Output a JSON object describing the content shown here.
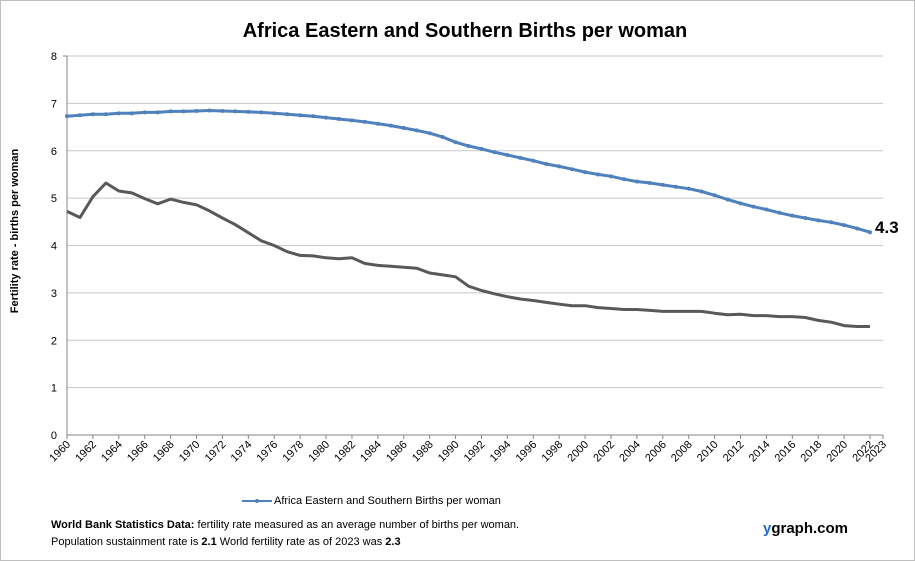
{
  "chart_data": {
    "type": "line",
    "title": "Africa Eastern and Southern Births per woman",
    "ylabel": "Fertility rate  - births per woman",
    "xlabel": "",
    "ylim": [
      0,
      8
    ],
    "yticks": [
      "0",
      "1",
      "2",
      "3",
      "4",
      "5",
      "6",
      "7",
      "8"
    ],
    "xlim": [
      1960,
      2023
    ],
    "xticks": [
      "1960",
      "1962",
      "1964",
      "1966",
      "1968",
      "1970",
      "1972",
      "1974",
      "1976",
      "1978",
      "1980",
      "1982",
      "1984",
      "1986",
      "1988",
      "1990",
      "1992",
      "1994",
      "1996",
      "1998",
      "2000",
      "2002",
      "2004",
      "2006",
      "2008",
      "2010",
      "2012",
      "2014",
      "2016",
      "2018",
      "2020",
      "2022",
      "2023"
    ],
    "grid": true,
    "legend_position": "bottom",
    "end_label": "4.3",
    "x": [
      1960,
      1961,
      1962,
      1963,
      1964,
      1965,
      1966,
      1967,
      1968,
      1969,
      1970,
      1971,
      1972,
      1973,
      1974,
      1975,
      1976,
      1977,
      1978,
      1979,
      1980,
      1981,
      1982,
      1983,
      1984,
      1985,
      1986,
      1987,
      1988,
      1989,
      1990,
      1991,
      1992,
      1993,
      1994,
      1995,
      1996,
      1997,
      1998,
      1999,
      2000,
      2001,
      2002,
      2003,
      2004,
      2005,
      2006,
      2007,
      2008,
      2009,
      2010,
      2011,
      2012,
      2013,
      2014,
      2015,
      2016,
      2017,
      2018,
      2019,
      2020,
      2021,
      2022
    ],
    "series": [
      {
        "name": "Africa Eastern and Southern Births per woman",
        "color": "#4f81bd",
        "markers": true,
        "values": [
          6.73,
          6.75,
          6.77,
          6.77,
          6.79,
          6.79,
          6.81,
          6.81,
          6.83,
          6.83,
          6.84,
          6.85,
          6.84,
          6.83,
          6.82,
          6.81,
          6.79,
          6.77,
          6.75,
          6.73,
          6.7,
          6.67,
          6.64,
          6.61,
          6.57,
          6.53,
          6.48,
          6.43,
          6.37,
          6.29,
          6.18,
          6.1,
          6.04,
          5.97,
          5.91,
          5.85,
          5.79,
          5.72,
          5.67,
          5.61,
          5.55,
          5.5,
          5.46,
          5.4,
          5.35,
          5.32,
          5.28,
          5.24,
          5.2,
          5.14,
          5.06,
          4.97,
          4.89,
          4.82,
          4.76,
          4.69,
          4.63,
          4.58,
          4.53,
          4.49,
          4.43,
          4.36,
          4.28
        ]
      },
      {
        "color": "#595959",
        "markers": false,
        "values": [
          4.72,
          4.59,
          5.03,
          5.32,
          5.15,
          5.11,
          4.99,
          4.88,
          4.98,
          4.91,
          4.86,
          4.73,
          4.58,
          4.44,
          4.27,
          4.1,
          4.0,
          3.87,
          3.79,
          3.78,
          3.74,
          3.72,
          3.74,
          3.62,
          3.58,
          3.56,
          3.54,
          3.52,
          3.42,
          3.38,
          3.34,
          3.14,
          3.05,
          2.98,
          2.92,
          2.87,
          2.84,
          2.8,
          2.76,
          2.73,
          2.73,
          2.69,
          2.67,
          2.65,
          2.65,
          2.63,
          2.61,
          2.61,
          2.61,
          2.61,
          2.57,
          2.54,
          2.55,
          2.52,
          2.52,
          2.5,
          2.5,
          2.48,
          2.42,
          2.38,
          2.31,
          2.29,
          2.29
        ]
      }
    ]
  },
  "legend": {
    "label": "Africa Eastern and Southern Births per woman"
  },
  "footer": {
    "source_label": "World Bank Statistics Data:",
    "source_text": " fertility rate measured as an average number  of births per woman.",
    "line2_prefix": "Population sustainment rate is ",
    "sustainment_rate": "2.1",
    "line2_mid": "   World fertility rate as of 2023 was ",
    "world_rate": "2.3"
  },
  "brand": {
    "y": "y",
    "rest": "graph.com"
  }
}
